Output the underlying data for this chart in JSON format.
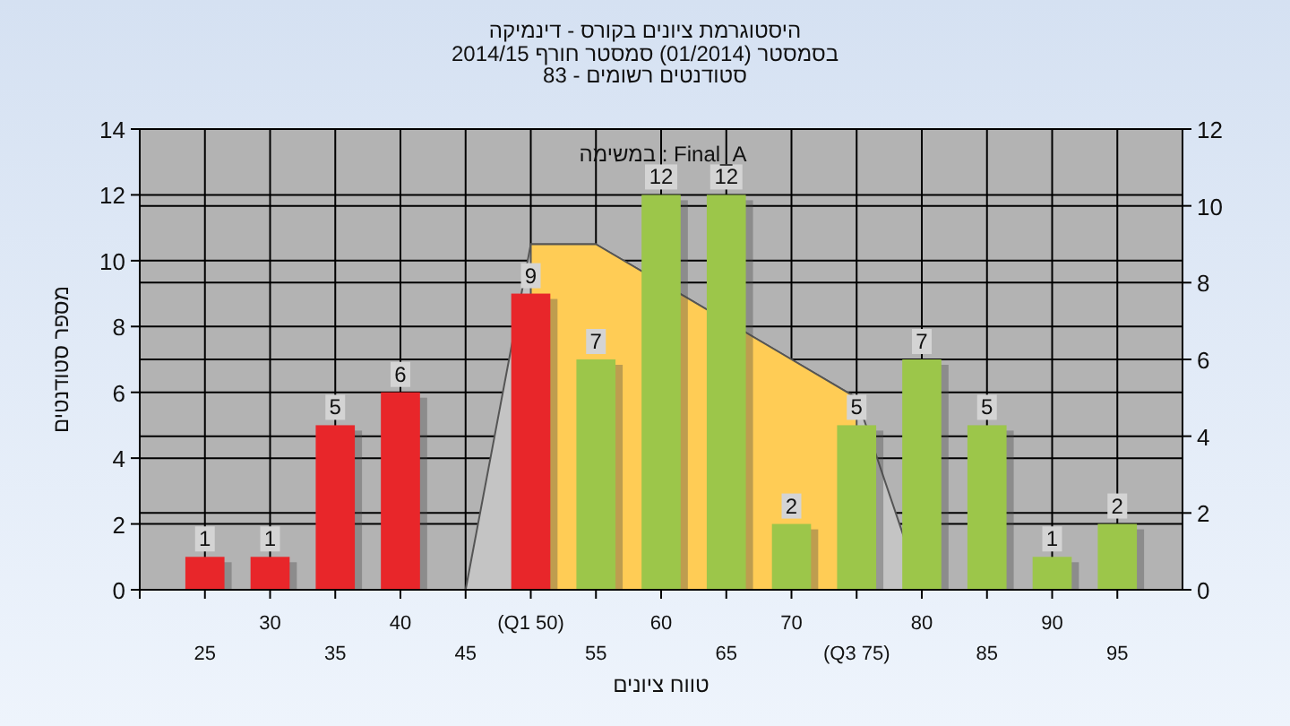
{
  "chart_data": {
    "type": "bar",
    "title": "היסטוגרמת ציונים בקורס - דינמיקה",
    "subtitle": "בסמסטר  (01/2014)  סמסטר חורף 2014/15",
    "annotations": [
      "סטודנטים רשומים - 83",
      "במשימה : Final_A"
    ],
    "xlabel": "טווח ציונים",
    "ylabel": "מספר סטודנטים",
    "categories": [
      "25",
      "30",
      "35",
      "40",
      "45",
      "(Q1 50)",
      "55",
      "60",
      "65",
      "70",
      "(Q3 75)",
      "80",
      "85",
      "90",
      "95"
    ],
    "series": [
      {
        "type": "area",
        "axis": "y2",
        "color": "#c4c4c4",
        "values": [
          null,
          null,
          null,
          null,
          0,
          9,
          9,
          null,
          null,
          6,
          5,
          0,
          null,
          null,
          null
        ]
      },
      {
        "type": "area",
        "axis": "y2",
        "color": "#ffcc55",
        "values": [
          null,
          null,
          null,
          null,
          null,
          9,
          9,
          null,
          null,
          6,
          5,
          null,
          null,
          null,
          null
        ]
      },
      {
        "values": [
          1,
          1,
          5,
          6,
          0,
          9,
          7,
          12,
          12,
          2,
          5,
          7,
          5,
          1,
          2
        ],
        "colors": [
          "#e8262a",
          "#e8262a",
          "#e8262a",
          "#e8262a",
          "#e8262a",
          "#e8262a",
          "#9cc64a",
          "#9cc64a",
          "#9cc64a",
          "#9cc64a",
          "#9cc64a",
          "#9cc64a",
          "#9cc64a",
          "#9cc64a",
          "#9cc64a"
        ],
        "value_labels": [
          "1",
          "1",
          "5",
          "6",
          null,
          "9",
          "7",
          "12",
          "12",
          "2",
          "5",
          "7",
          "5",
          "1",
          "2"
        ]
      }
    ],
    "ylim": [
      0,
      14
    ],
    "yticks": [
      0,
      2,
      4,
      6,
      8,
      10,
      12,
      14
    ],
    "y2lim": [
      0,
      12
    ],
    "y2ticks": [
      0,
      2,
      4,
      6,
      8,
      10,
      12
    ],
    "grid": true
  }
}
